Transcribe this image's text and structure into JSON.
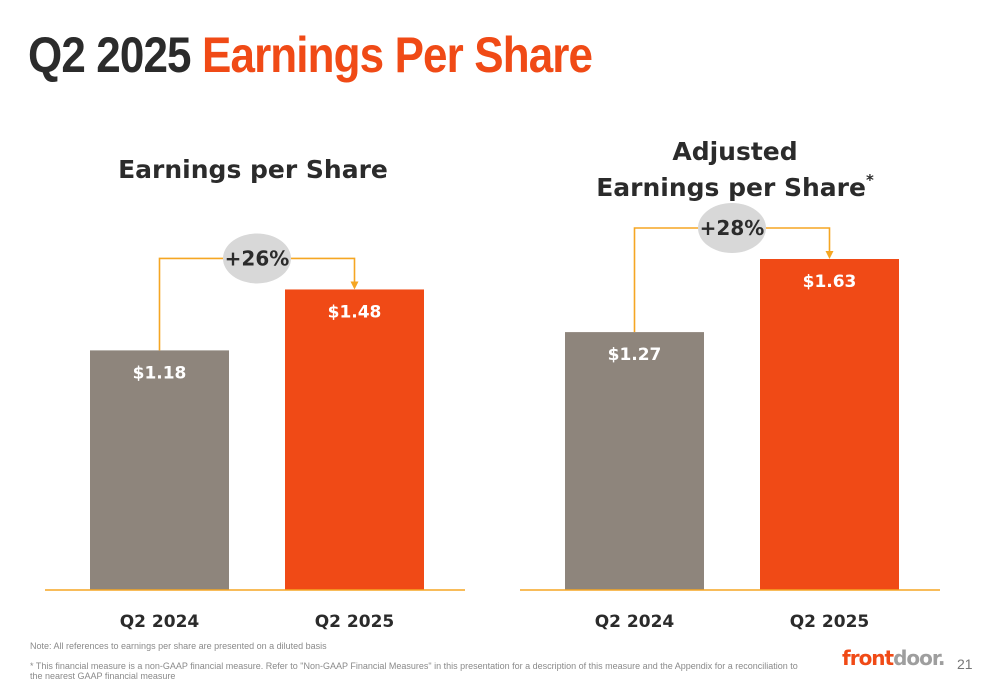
{
  "slide": {
    "title_lead": "Q2 2025",
    "title_accent": "Earnings Per Share",
    "note": "Note: All references to earnings per share are presented on a diluted basis",
    "footnote": "* This financial measure is a non-GAAP financial measure. Refer to \"Non-GAAP Financial Measures\" in this presentation for a description of this measure and the Appendix for a reconciliation to the nearest GAAP financial measure",
    "logo_part1": "front",
    "logo_part2": "door.",
    "page_number": "21"
  },
  "colors": {
    "prior_bar": "#8e857c",
    "current_bar": "#f04a16",
    "title": "#2b2b2b",
    "accent": "#f04a16",
    "growth_connector": "#f5a623",
    "growth_badge": "#d8d8d8",
    "axis_line": "#f5a623"
  },
  "chart_data": [
    {
      "type": "bar",
      "title": "Earnings per Share",
      "categories": [
        "Q2 2024",
        "Q2 2025"
      ],
      "values": [
        1.18,
        1.48
      ],
      "value_labels": [
        "$1.18",
        "$1.48"
      ],
      "growth_label": "+26%",
      "ylim": [
        0,
        1.63
      ],
      "grid": false,
      "legend": "none"
    },
    {
      "type": "bar",
      "title": "Adjusted Earnings per Share",
      "title_lines": [
        "Adjusted",
        "Earnings per Share"
      ],
      "title_suffix": "*",
      "categories": [
        "Q2 2024",
        "Q2 2025"
      ],
      "values": [
        1.27,
        1.63
      ],
      "value_labels": [
        "$1.27",
        "$1.63"
      ],
      "growth_label": "+28%",
      "ylim": [
        0,
        1.63
      ],
      "grid": false,
      "legend": "none"
    }
  ]
}
